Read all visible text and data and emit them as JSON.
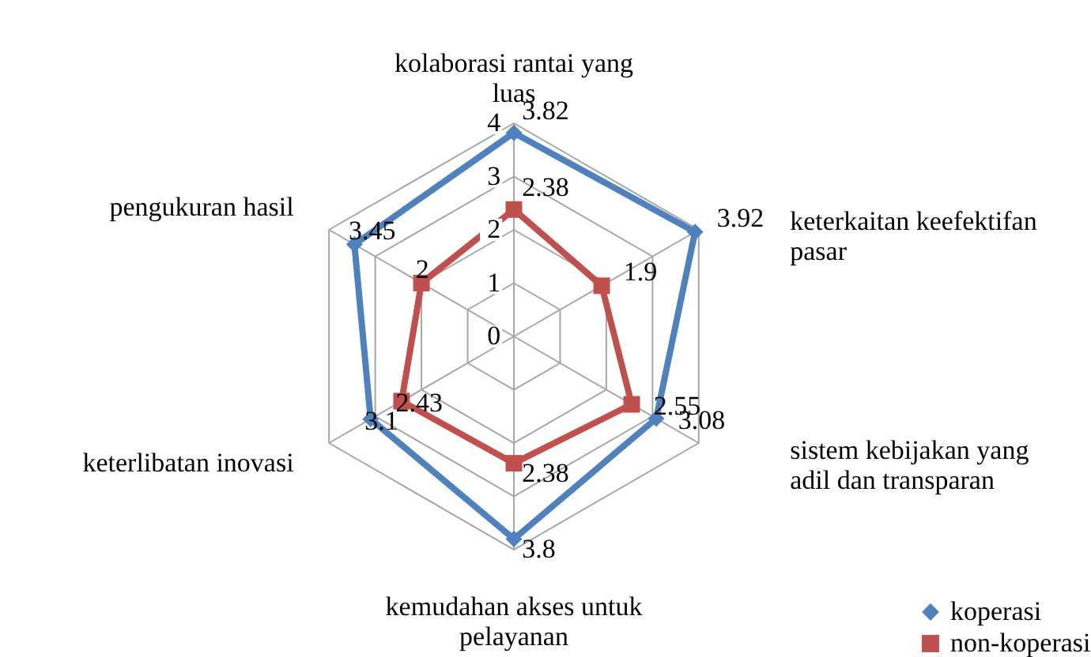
{
  "chart_data": {
    "type": "radar",
    "categories": [
      "kolaborasi rantai yang luas",
      "keterkaitan keefektifan pasar",
      "sistem kebijakan yang adil dan transparan",
      "kemudahan akses untuk pelayanan",
      "keterlibatan inovasi",
      "pengukuran hasil"
    ],
    "series": [
      {
        "name": "koperasi",
        "color": "#4f81bd",
        "marker": "diamond",
        "values": [
          3.82,
          3.92,
          3.08,
          3.8,
          3.1,
          3.45
        ]
      },
      {
        "name": "non-koperasi",
        "color": "#c0504d",
        "marker": "square",
        "values": [
          2.38,
          1.9,
          2.55,
          2.38,
          2.43,
          2
        ]
      }
    ],
    "ylim": [
      0,
      4
    ],
    "yticks": [
      0,
      1,
      2,
      3,
      4
    ],
    "grid": true,
    "data_labels": true,
    "legend": "bottom right"
  }
}
